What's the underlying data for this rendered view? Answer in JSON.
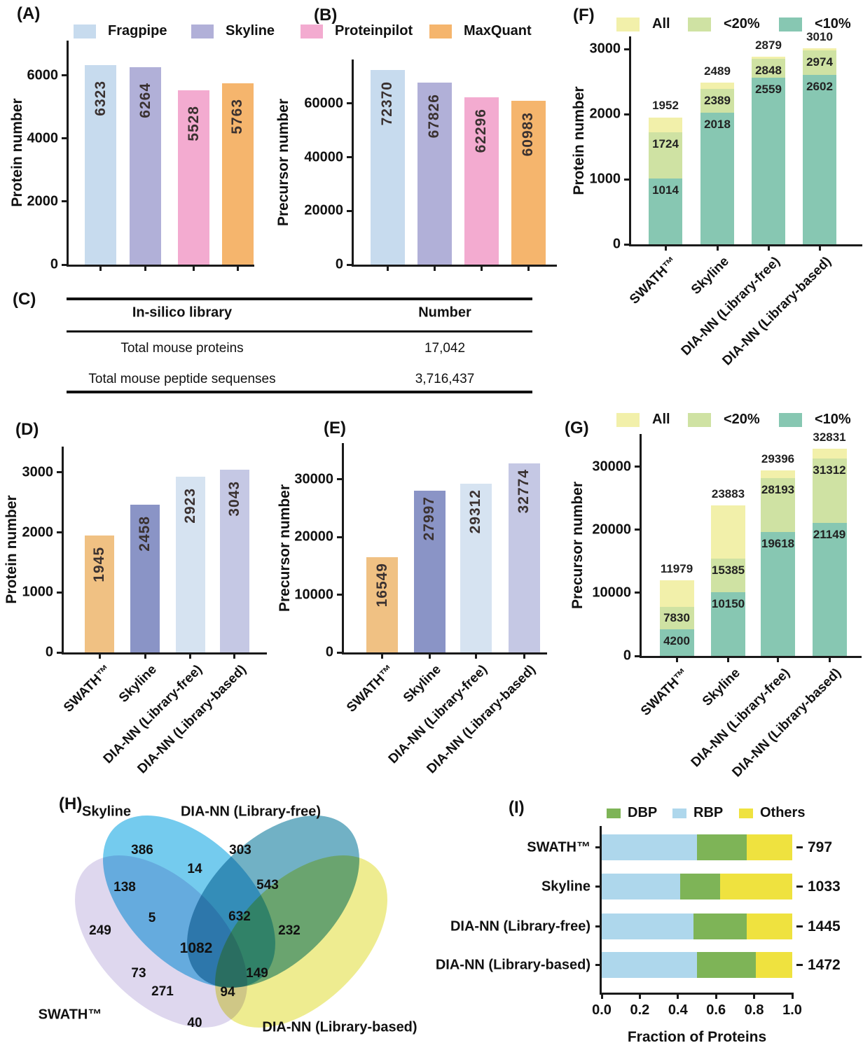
{
  "panels": {
    "a": {
      "label": "(A)"
    },
    "b": {
      "label": "(B)"
    },
    "c": {
      "label": "(C)"
    },
    "d": {
      "label": "(D)"
    },
    "e": {
      "label": "(E)"
    },
    "f": {
      "label": "(F)"
    },
    "g": {
      "label": "(G)"
    },
    "h": {
      "label": "(H)"
    },
    "i": {
      "label": "(I)"
    }
  },
  "legends": {
    "ab": [
      {
        "label": "Fragpipe",
        "color": "#c7dbee"
      },
      {
        "label": "Skyline",
        "color": "#b1b0d8"
      },
      {
        "label": "Proteinpilot",
        "color": "#f3abd0"
      },
      {
        "label": "MaxQuant",
        "color": "#f5b56d"
      }
    ],
    "fg": [
      {
        "label": "All",
        "color": "#f2f0aa"
      },
      {
        "label": "<20%",
        "color": "#cfe2a3"
      },
      {
        "label": "<10%",
        "color": "#87c7b2"
      }
    ],
    "i": [
      {
        "label": "DBP",
        "color": "#7eb457"
      },
      {
        "label": "RBP",
        "color": "#aed7ec"
      },
      {
        "label": "Others",
        "color": "#efe23f"
      }
    ]
  },
  "chart_data": [
    {
      "id": "A",
      "type": "bar",
      "ylabel": "Protein number",
      "categories": [
        "Fragpipe",
        "Skyline",
        "Proteinpilot",
        "MaxQuant"
      ],
      "values": [
        6323,
        6264,
        5528,
        5763
      ],
      "bar_colors": [
        "#c7dbee",
        "#b1b0d8",
        "#f3abd0",
        "#f5b56d"
      ],
      "yticks": [
        0,
        2000,
        4000,
        6000
      ],
      "ylim": [
        0,
        7110
      ],
      "show_category_labels": false,
      "legend_position": "top",
      "grid": false
    },
    {
      "id": "B",
      "type": "bar",
      "ylabel": "Precursor number",
      "categories": [
        "Fragpipe",
        "Skyline",
        "Proteinpilot",
        "MaxQuant"
      ],
      "values": [
        72370,
        67826,
        62296,
        60983
      ],
      "bar_colors": [
        "#c7dbee",
        "#b1b0d8",
        "#f3abd0",
        "#f5b56d"
      ],
      "yticks": [
        0,
        20000,
        40000,
        60000
      ],
      "ylim": [
        0,
        76400
      ],
      "show_category_labels": false,
      "grid": false
    },
    {
      "id": "C",
      "type": "table",
      "headers": [
        "In-silico library",
        "Number"
      ],
      "rows": [
        [
          "Total mouse proteins",
          "17,042"
        ],
        [
          "Total mouse peptide sequenses",
          "3,716,437"
        ]
      ]
    },
    {
      "id": "D",
      "type": "bar",
      "ylabel": "Protein number",
      "categories": [
        "SWATH™",
        "Skyline",
        "DIA-NN (Library-free)",
        "DIA-NN (Library-based)"
      ],
      "values": [
        1945,
        2458,
        2923,
        3043
      ],
      "bar_colors": [
        "#f0c183",
        "#8a94c6",
        "#d6e3f1",
        "#c5c8e4"
      ],
      "yticks": [
        0,
        1000,
        2000,
        3000
      ],
      "ylim": [
        0,
        3430
      ],
      "show_category_labels": true,
      "grid": false
    },
    {
      "id": "E",
      "type": "bar",
      "ylabel": "Precursor number",
      "categories": [
        "SWATH™",
        "Skyline",
        "DIA-NN (Library-free)",
        "DIA-NN (Library-based)"
      ],
      "values": [
        16549,
        27997,
        29312,
        32774
      ],
      "bar_colors": [
        "#f0c183",
        "#8a94c6",
        "#d6e3f1",
        "#c5c8e4"
      ],
      "yticks": [
        0,
        10000,
        20000,
        30000
      ],
      "ylim": [
        0,
        36300
      ],
      "show_category_labels": true,
      "grid": false
    },
    {
      "id": "F",
      "type": "stacked-bar",
      "ylabel": "Protein number",
      "categories": [
        "SWATH™",
        "Skyline",
        "DIA-NN (Library-free)",
        "DIA-NN (Library-based)"
      ],
      "series": [
        {
          "name": "All",
          "color": "#f2f0aa",
          "values": [
            1952,
            2489,
            2879,
            3010
          ]
        },
        {
          "name": "<20%",
          "color": "#cfe2a3",
          "values": [
            1724,
            2389,
            2848,
            2974
          ]
        },
        {
          "name": "<10%",
          "color": "#87c7b2",
          "values": [
            1014,
            2018,
            2559,
            2602
          ]
        }
      ],
      "yticks": [
        0,
        1000,
        2000,
        3000
      ],
      "ylim": [
        0,
        3194
      ],
      "legend_position": "top",
      "grid": false
    },
    {
      "id": "G",
      "type": "stacked-bar",
      "ylabel": "Precursor number",
      "categories": [
        "SWATH™",
        "Skyline",
        "DIA-NN (Library-free)",
        "DIA-NN (Library-based)"
      ],
      "series": [
        {
          "name": "All",
          "color": "#f2f0aa",
          "values": [
            11979,
            23883,
            29396,
            32831
          ]
        },
        {
          "name": "<20%",
          "color": "#cfe2a3",
          "values": [
            7830,
            15385,
            28193,
            31312
          ]
        },
        {
          "name": "<10%",
          "color": "#87c7b2",
          "values": [
            4200,
            10150,
            19618,
            21149
          ]
        }
      ],
      "yticks": [
        0,
        10000,
        20000,
        30000
      ],
      "ylim": [
        0,
        35200
      ],
      "legend_position": "top",
      "grid": false
    },
    {
      "id": "H",
      "type": "venn",
      "sets": [
        {
          "label": "Skyline",
          "color": "#74cbee"
        },
        {
          "label": "DIA-NN (Library-free)",
          "color": "#71b1c5"
        },
        {
          "label": "SWATH™",
          "color": "#ded7ee"
        },
        {
          "label": "DIA-NN (Library-based)",
          "color": "#eeec90"
        }
      ],
      "region_values": [
        386,
        303,
        14,
        138,
        543,
        5,
        632,
        249,
        232,
        1082,
        73,
        149,
        271,
        94,
        40
      ]
    },
    {
      "id": "I",
      "type": "hbar-stacked",
      "xlabel": "Fraction of Proteins",
      "segment_order": [
        "RBP",
        "DBP",
        "Others"
      ],
      "segment_colors": [
        "#aed7ec",
        "#7eb457",
        "#efe23f"
      ],
      "rows": [
        {
          "label": "SWATH™",
          "total": "797",
          "fractions": [
            0.5,
            0.26,
            0.24
          ]
        },
        {
          "label": "Skyline",
          "total": "1033",
          "fractions": [
            0.41,
            0.21,
            0.38
          ]
        },
        {
          "label": "DIA-NN (Library-free)",
          "total": "1445",
          "fractions": [
            0.48,
            0.28,
            0.24
          ]
        },
        {
          "label": "DIA-NN (Library-based)",
          "total": "1472",
          "fractions": [
            0.5,
            0.31,
            0.19
          ]
        }
      ],
      "xticks": [
        "0.0",
        "0.2",
        "0.4",
        "0.6",
        "0.8",
        "1.0"
      ],
      "xlim": [
        0,
        1
      ]
    }
  ]
}
